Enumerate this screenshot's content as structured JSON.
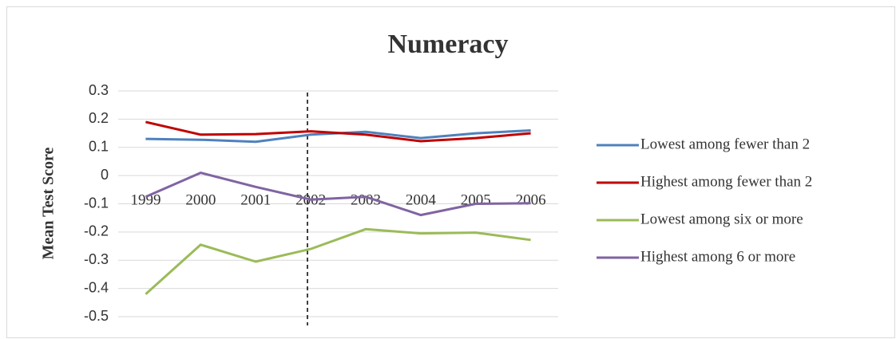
{
  "chart_data": {
    "type": "line",
    "title": "Numeracy",
    "ylabel": "Mean Test Score",
    "categories": [
      "1999",
      "2000",
      "2001",
      "2002",
      "2003",
      "2004",
      "2005",
      "2006"
    ],
    "series": [
      {
        "name": "Lowest among fewer than 2",
        "color": "#4f81bd",
        "values": [
          0.13,
          0.127,
          0.12,
          0.145,
          0.155,
          0.133,
          0.15,
          0.16
        ]
      },
      {
        "name": "Highest among fewer than 2",
        "color": "#c00000",
        "values": [
          0.19,
          0.145,
          0.147,
          0.157,
          0.145,
          0.122,
          0.133,
          0.15
        ]
      },
      {
        "name": "Lowest among six or more",
        "color": "#9bbb59",
        "values": [
          -0.42,
          -0.245,
          -0.305,
          -0.26,
          -0.19,
          -0.205,
          -0.202,
          -0.228
        ]
      },
      {
        "name": "Highest among 6 or more",
        "color": "#8064a2",
        "values": [
          -0.075,
          0.01,
          -0.04,
          -0.085,
          -0.075,
          -0.14,
          -0.1,
          -0.098
        ]
      }
    ],
    "ylim": [
      -0.5,
      0.3
    ],
    "yticks": [
      0.3,
      0.2,
      0.1,
      0,
      -0.1,
      -0.2,
      -0.3,
      -0.4,
      -0.5
    ],
    "grid": true,
    "legend": "right"
  }
}
